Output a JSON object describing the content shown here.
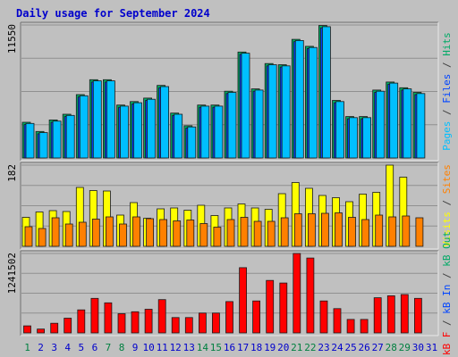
{
  "chart_data": {
    "type": "bar",
    "title": "Daily usage for September 2024",
    "days": [
      "1",
      "2",
      "3",
      "4",
      "5",
      "6",
      "7",
      "8",
      "9",
      "10",
      "11",
      "12",
      "13",
      "14",
      "15",
      "16",
      "17",
      "18",
      "19",
      "20",
      "21",
      "22",
      "23",
      "24",
      "25",
      "26",
      "27",
      "28",
      "29",
      "30",
      "31"
    ],
    "weekend_days": [
      "1",
      "7",
      "8",
      "14",
      "15",
      "21",
      "22",
      "28",
      "29"
    ],
    "panels": [
      {
        "id": "hits",
        "ymax_label": "11550",
        "ymax": 11550,
        "side_label": [
          {
            "text": "Pages",
            "color": "#00bfff"
          },
          {
            "text": " / ",
            "color": "#404040"
          },
          {
            "text": "Files",
            "color": "#0044ff"
          },
          {
            "text": " / ",
            "color": "#404040"
          },
          {
            "text": "Hits",
            "color": "#00aa66"
          }
        ],
        "series": [
          {
            "name": "Hits",
            "color": "#00aa66",
            "values": [
              3100,
              2300,
              3300,
              3800,
              5500,
              6800,
              6800,
              4600,
              4900,
              5200,
              6300,
              3900,
              2800,
              4600,
              4600,
              5800,
              9200,
              6000,
              8200,
              8100,
              10300,
              9700,
              11500,
              5000,
              3600,
              3600,
              5900,
              6600,
              6100,
              5700,
              0
            ]
          },
          {
            "name": "Files",
            "color": "#0044ff",
            "values": [
              2900,
              2100,
              3100,
              3600,
              5300,
              6600,
              6600,
              4400,
              4700,
              5000,
              6100,
              3700,
              2600,
              4400,
              4400,
              5600,
              9000,
              5800,
              8000,
              7900,
              10100,
              9500,
              11300,
              4800,
              3400,
              3400,
              5700,
              6400,
              5900,
              5500,
              0
            ]
          },
          {
            "name": "Pages",
            "color": "#00bfff",
            "values": [
              3000,
              2200,
              3200,
              3700,
              5400,
              6700,
              6700,
              4500,
              4800,
              5100,
              6200,
              3800,
              2700,
              4500,
              4500,
              5700,
              9100,
              5900,
              8100,
              8000,
              10200,
              9600,
              11400,
              4900,
              3500,
              3500,
              5800,
              6500,
              6000,
              5600,
              0
            ]
          }
        ]
      },
      {
        "id": "visits",
        "ymax_label": "182",
        "ymax": 182,
        "side_label": [
          {
            "text": "Visits",
            "color": "#ffff00"
          },
          {
            "text": " / ",
            "color": "#404040"
          },
          {
            "text": "Sites",
            "color": "#ff8000"
          }
        ],
        "series": [
          {
            "name": "Visits",
            "color": "#ffff00",
            "values": [
              65,
              77,
              80,
              78,
              132,
              125,
              124,
              70,
              98,
              63,
              84,
              86,
              81,
              92,
              69,
              86,
              95,
              86,
              83,
              118,
              143,
              130,
              114,
              109,
              100,
              117,
              121,
              182,
              155,
              0,
              0
            ]
          },
          {
            "name": "Sites",
            "color": "#ff8000",
            "values": [
              44,
              40,
              64,
              50,
              54,
              61,
              66,
              50,
              66,
              62,
              60,
              57,
              59,
              51,
              43,
              60,
              65,
              56,
              56,
              64,
              73,
              73,
              74,
              75,
              65,
              60,
              70,
              66,
              68,
              64,
              0
            ]
          }
        ]
      },
      {
        "id": "kb",
        "ymax_label": "1241502",
        "ymax": 1241502,
        "side_label": [
          {
            "text": "kB F",
            "color": "#ff0000"
          },
          {
            "text": " / ",
            "color": "#404040"
          },
          {
            "text": "kB In",
            "color": "#0044ff"
          },
          {
            "text": " / ",
            "color": "#404040"
          },
          {
            "text": "kB Out",
            "color": "#00aa66"
          }
        ],
        "series": [
          {
            "name": "kB F",
            "color": "#ff0000",
            "values": [
              110000,
              60000,
              150000,
              230000,
              360000,
              540000,
              470000,
              300000,
              330000,
              370000,
              520000,
              240000,
              240000,
              310000,
              310000,
              490000,
              1020000,
              500000,
              820000,
              780000,
              1250000,
              1170000,
              500000,
              380000,
              210000,
              210000,
              550000,
              580000,
              600000,
              540000,
              0
            ]
          }
        ]
      }
    ]
  },
  "colors": {
    "background": "#c0c0c0",
    "plot_bg": "#c0c0c0",
    "frame_light": "#e8e8e8",
    "frame_dark": "#707070",
    "gridline": "#909090",
    "title_color": "#0000cc",
    "day_weekday": "#0000cc",
    "day_weekend": "#008040"
  }
}
